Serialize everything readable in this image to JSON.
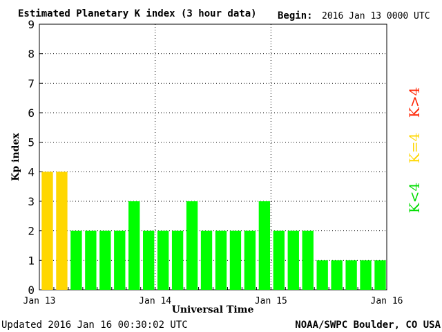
{
  "header": {
    "title": "Estimated Planetary K index (3 hour data)",
    "begin_label": "Begin:",
    "begin_value": "2016 Jan 13 0000 UTC"
  },
  "footer": {
    "updated": "Updated 2016 Jan 16 00:30:02 UTC",
    "source": "NOAA/SWPC Boulder, CO USA"
  },
  "legend": {
    "items": [
      {
        "label": "K<4",
        "color": "#00ff00"
      },
      {
        "label": "K=4",
        "color": "#ffd700"
      },
      {
        "label": "K>4",
        "color": "#ff2200"
      }
    ]
  },
  "chart_data": {
    "type": "bar",
    "title": "Estimated Planetary K index (3 hour data)",
    "xlabel": "Universal Time",
    "ylabel": "Kp index",
    "ylim": [
      0,
      9
    ],
    "yticks": [
      0,
      1,
      2,
      3,
      4,
      5,
      6,
      7,
      8,
      9
    ],
    "xticks": [
      "Jan 13",
      "Jan 14",
      "Jan 15",
      "Jan 16"
    ],
    "bar_count_per_day": 8,
    "grid": true,
    "values": [
      4,
      4,
      2,
      2,
      2,
      2,
      3,
      2,
      2,
      2,
      3,
      2,
      2,
      2,
      2,
      3,
      2,
      2,
      2,
      1,
      1,
      1,
      1,
      1
    ],
    "colors": {
      "below4": "#00ff00",
      "equal4": "#ffd700",
      "above4": "#ff2200"
    }
  }
}
